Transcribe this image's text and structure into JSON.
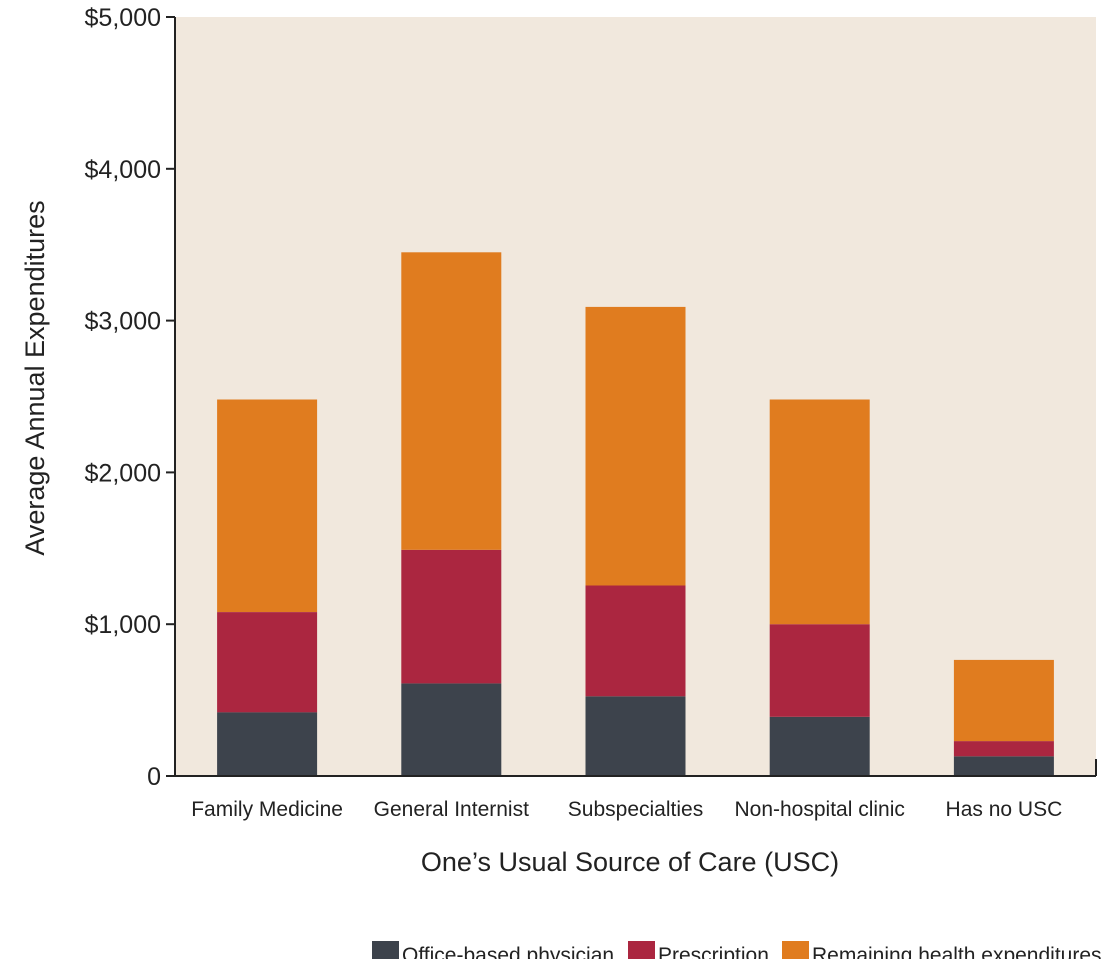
{
  "chart_data": {
    "type": "bar",
    "stacked": true,
    "categories": [
      "Family Medicine",
      "General Internist",
      "Subspecialties",
      "Non-hospital clinic",
      "Has no USC"
    ],
    "series": [
      {
        "name": "Office-based physician",
        "values": [
          420,
          610,
          525,
          390,
          130
        ],
        "color": "#3d434c"
      },
      {
        "name": "Prescription",
        "values": [
          660,
          880,
          730,
          610,
          100
        ],
        "color": "#ab2640"
      },
      {
        "name": "Remaining health expenditures",
        "values": [
          1400,
          1960,
          1835,
          1480,
          535
        ],
        "color": "#e07c1f"
      }
    ],
    "xlabel": "One’s Usual Source of Care (USC)",
    "ylabel": "Average Annual Expenditures",
    "ylim": [
      0,
      5000
    ],
    "yticks": [
      {
        "value": 0,
        "label": "0"
      },
      {
        "value": 1000,
        "label": "$1,000"
      },
      {
        "value": 2000,
        "label": "$2,000"
      },
      {
        "value": 3000,
        "label": "$3,000"
      },
      {
        "value": 4000,
        "label": "$4,000"
      },
      {
        "value": 5000,
        "label": "$5,000"
      }
    ],
    "plot_background": "#f1e8dd",
    "grid": false,
    "legend_position": "bottom-right"
  }
}
